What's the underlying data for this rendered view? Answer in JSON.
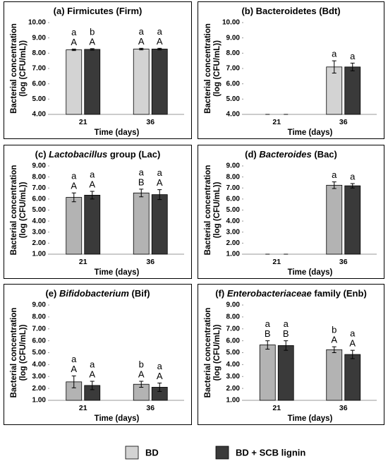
{
  "chart_data": [
    {
      "type": "bar",
      "title": [
        {
          "text": "(a) Firmicutes (Firm)"
        }
      ],
      "ylabel": [
        "Bacterial concentration",
        "(log (CFU/mL))"
      ],
      "xlabel": "Time (days)",
      "categories": [
        "21",
        "36"
      ],
      "series": [
        {
          "name": "BD",
          "color": "#d3d3d3",
          "values": [
            8.22,
            8.27
          ],
          "errors": [
            0.05,
            0.05
          ],
          "letters_lower": [
            "a",
            "a"
          ],
          "letters_upper": [
            "A",
            "A"
          ]
        },
        {
          "name": "BD + SCB lignin",
          "color": "#3a3a3a",
          "values": [
            8.25,
            8.27
          ],
          "errors": [
            0.05,
            0.05
          ],
          "letters_lower": [
            "b",
            "a"
          ],
          "letters_upper": [
            "A",
            "A"
          ]
        }
      ],
      "ylim": [
        4,
        10
      ],
      "yticks": [
        {
          "value": 4,
          "label": "4.00"
        },
        {
          "value": 5,
          "label": "5.00"
        },
        {
          "value": 6,
          "label": "6.00"
        },
        {
          "value": 7,
          "label": "7.00"
        },
        {
          "value": 8,
          "label": "8.00"
        },
        {
          "value": 9,
          "label": "9.00"
        },
        {
          "value": 10,
          "label": "10.00"
        }
      ]
    },
    {
      "type": "bar",
      "title": [
        {
          "text": "(b) Bacteroidetes (Bdt)"
        }
      ],
      "ylabel": [
        "Bacterial concentration",
        "(log (CFU/mL))"
      ],
      "xlabel": "Time (days)",
      "categories": [
        "21",
        "36"
      ],
      "series": [
        {
          "name": "BD",
          "color": "#d3d3d3",
          "values": [
            4.0,
            7.1
          ],
          "errors": [
            0,
            0.4
          ],
          "letters_lower": [
            null,
            "a"
          ],
          "letters_upper": [
            null,
            null
          ]
        },
        {
          "name": "BD + SCB lignin",
          "color": "#3a3a3a",
          "values": [
            4.0,
            7.1
          ],
          "errors": [
            0,
            0.25
          ],
          "letters_lower": [
            null,
            "a"
          ],
          "letters_upper": [
            null,
            null
          ]
        }
      ],
      "ylim": [
        4,
        10
      ],
      "yticks": [
        {
          "value": 4,
          "label": "4.00"
        },
        {
          "value": 5,
          "label": "5.00"
        },
        {
          "value": 6,
          "label": "6.00"
        },
        {
          "value": 7,
          "label": "7.00"
        },
        {
          "value": 8,
          "label": "8.00"
        },
        {
          "value": 9,
          "label": "9.00"
        },
        {
          "value": 10,
          "label": "10.00"
        }
      ]
    },
    {
      "type": "bar",
      "title": [
        {
          "text": "(c) "
        },
        {
          "text": "Lactobacillus",
          "italic": true
        },
        {
          "text": " group (Lac)"
        }
      ],
      "ylabel": [
        "Bacterial concentration",
        "(log (CFU/mL))"
      ],
      "xlabel": "Time (days)",
      "categories": [
        "21",
        "36"
      ],
      "series": [
        {
          "name": "BD",
          "color": "#b3b3b3",
          "values": [
            6.15,
            6.55
          ],
          "errors": [
            0.4,
            0.35
          ],
          "letters_lower": [
            "a",
            "a"
          ],
          "letters_upper": [
            "A",
            "B"
          ]
        },
        {
          "name": "BD + SCB lignin",
          "color": "#3a3a3a",
          "values": [
            6.35,
            6.4
          ],
          "errors": [
            0.35,
            0.45
          ],
          "letters_lower": [
            "a",
            "a"
          ],
          "letters_upper": [
            "A",
            "A"
          ]
        }
      ],
      "ylim": [
        1,
        9
      ],
      "yticks": [
        {
          "value": 1,
          "label": "1.00"
        },
        {
          "value": 2,
          "label": "2.00"
        },
        {
          "value": 3,
          "label": "3.00"
        },
        {
          "value": 4,
          "label": "4.00"
        },
        {
          "value": 5,
          "label": "5.00"
        },
        {
          "value": 6,
          "label": "6.00"
        },
        {
          "value": 7,
          "label": "7.00"
        },
        {
          "value": 8,
          "label": "8.00"
        },
        {
          "value": 9,
          "label": "9.00"
        }
      ]
    },
    {
      "type": "bar",
      "title": [
        {
          "text": "(d) "
        },
        {
          "text": "Bacteroides",
          "italic": true
        },
        {
          "text": " (Bac)"
        }
      ],
      "ylabel": [
        "Bacterial concentration",
        "(log (CFU/mL))"
      ],
      "xlabel": "Time (days)",
      "categories": [
        "21",
        "36"
      ],
      "series": [
        {
          "name": "BD",
          "color": "#b3b3b3",
          "values": [
            1.0,
            7.25
          ],
          "errors": [
            0,
            0.3
          ],
          "letters_lower": [
            null,
            "a"
          ],
          "letters_upper": [
            null,
            null
          ]
        },
        {
          "name": "BD + SCB lignin",
          "color": "#3a3a3a",
          "values": [
            1.0,
            7.2
          ],
          "errors": [
            0,
            0.2
          ],
          "letters_lower": [
            null,
            "a"
          ],
          "letters_upper": [
            null,
            null
          ]
        }
      ],
      "ylim": [
        1,
        9
      ],
      "yticks": [
        {
          "value": 1,
          "label": "1.00"
        },
        {
          "value": 2,
          "label": "2.00"
        },
        {
          "value": 3,
          "label": "3.00"
        },
        {
          "value": 4,
          "label": "4.00"
        },
        {
          "value": 5,
          "label": "5.00"
        },
        {
          "value": 6,
          "label": "6.00"
        },
        {
          "value": 7,
          "label": "7.00"
        },
        {
          "value": 8,
          "label": "8.00"
        },
        {
          "value": 9,
          "label": "9.00"
        }
      ]
    },
    {
      "type": "bar",
      "title": [
        {
          "text": "(e) "
        },
        {
          "text": "Bifidobacterium",
          "italic": true
        },
        {
          "text": " (Bif)"
        }
      ],
      "ylabel": [
        "Bacterial concentration",
        "(log (CFU/mL))"
      ],
      "xlabel": "Time (days)",
      "categories": [
        "21",
        "36"
      ],
      "series": [
        {
          "name": "BD",
          "color": "#b3b3b3",
          "values": [
            2.55,
            2.35
          ],
          "errors": [
            0.5,
            0.25
          ],
          "letters_lower": [
            "a",
            "b"
          ],
          "letters_upper": [
            "A",
            "A"
          ]
        },
        {
          "name": "BD + SCB lignin",
          "color": "#3a3a3a",
          "values": [
            2.25,
            2.1
          ],
          "errors": [
            0.35,
            0.35
          ],
          "letters_lower": [
            "a",
            "a"
          ],
          "letters_upper": [
            "A",
            "A"
          ]
        }
      ],
      "ylim": [
        1,
        9
      ],
      "yticks": [
        {
          "value": 1,
          "label": "1.00"
        },
        {
          "value": 2,
          "label": "2.00"
        },
        {
          "value": 3,
          "label": "3.00"
        },
        {
          "value": 4,
          "label": "4.00"
        },
        {
          "value": 5,
          "label": "5.00"
        },
        {
          "value": 6,
          "label": "6.00"
        },
        {
          "value": 7,
          "label": "7.00"
        },
        {
          "value": 8,
          "label": "8.00"
        },
        {
          "value": 9,
          "label": "9.00"
        }
      ]
    },
    {
      "type": "bar",
      "title": [
        {
          "text": "(f) "
        },
        {
          "text": "Enterobacteriaceae",
          "italic": true
        },
        {
          "text": " family (Enb)"
        }
      ],
      "ylabel": [
        "Bacterial concentration",
        "(log (CFU/mL))"
      ],
      "xlabel": "Time (days)",
      "categories": [
        "21",
        "36"
      ],
      "series": [
        {
          "name": "BD",
          "color": "#b3b3b3",
          "values": [
            5.65,
            5.25
          ],
          "errors": [
            0.35,
            0.25
          ],
          "letters_lower": [
            "a",
            "b"
          ],
          "letters_upper": [
            "B",
            "A"
          ]
        },
        {
          "name": "BD + SCB lignin",
          "color": "#3a3a3a",
          "values": [
            5.6,
            4.85
          ],
          "errors": [
            0.4,
            0.35
          ],
          "letters_lower": [
            "a",
            "a"
          ],
          "letters_upper": [
            "B",
            "A"
          ]
        }
      ],
      "ylim": [
        1,
        9
      ],
      "yticks": [
        {
          "value": 1,
          "label": "1.00"
        },
        {
          "value": 2,
          "label": "2.00"
        },
        {
          "value": 3,
          "label": "3.00"
        },
        {
          "value": 4,
          "label": "4.00"
        },
        {
          "value": 5,
          "label": "5.00"
        },
        {
          "value": 6,
          "label": "6.00"
        },
        {
          "value": 7,
          "label": "7.00"
        },
        {
          "value": 8,
          "label": "8.00"
        },
        {
          "value": 9,
          "label": "9.00"
        }
      ]
    }
  ]
}
